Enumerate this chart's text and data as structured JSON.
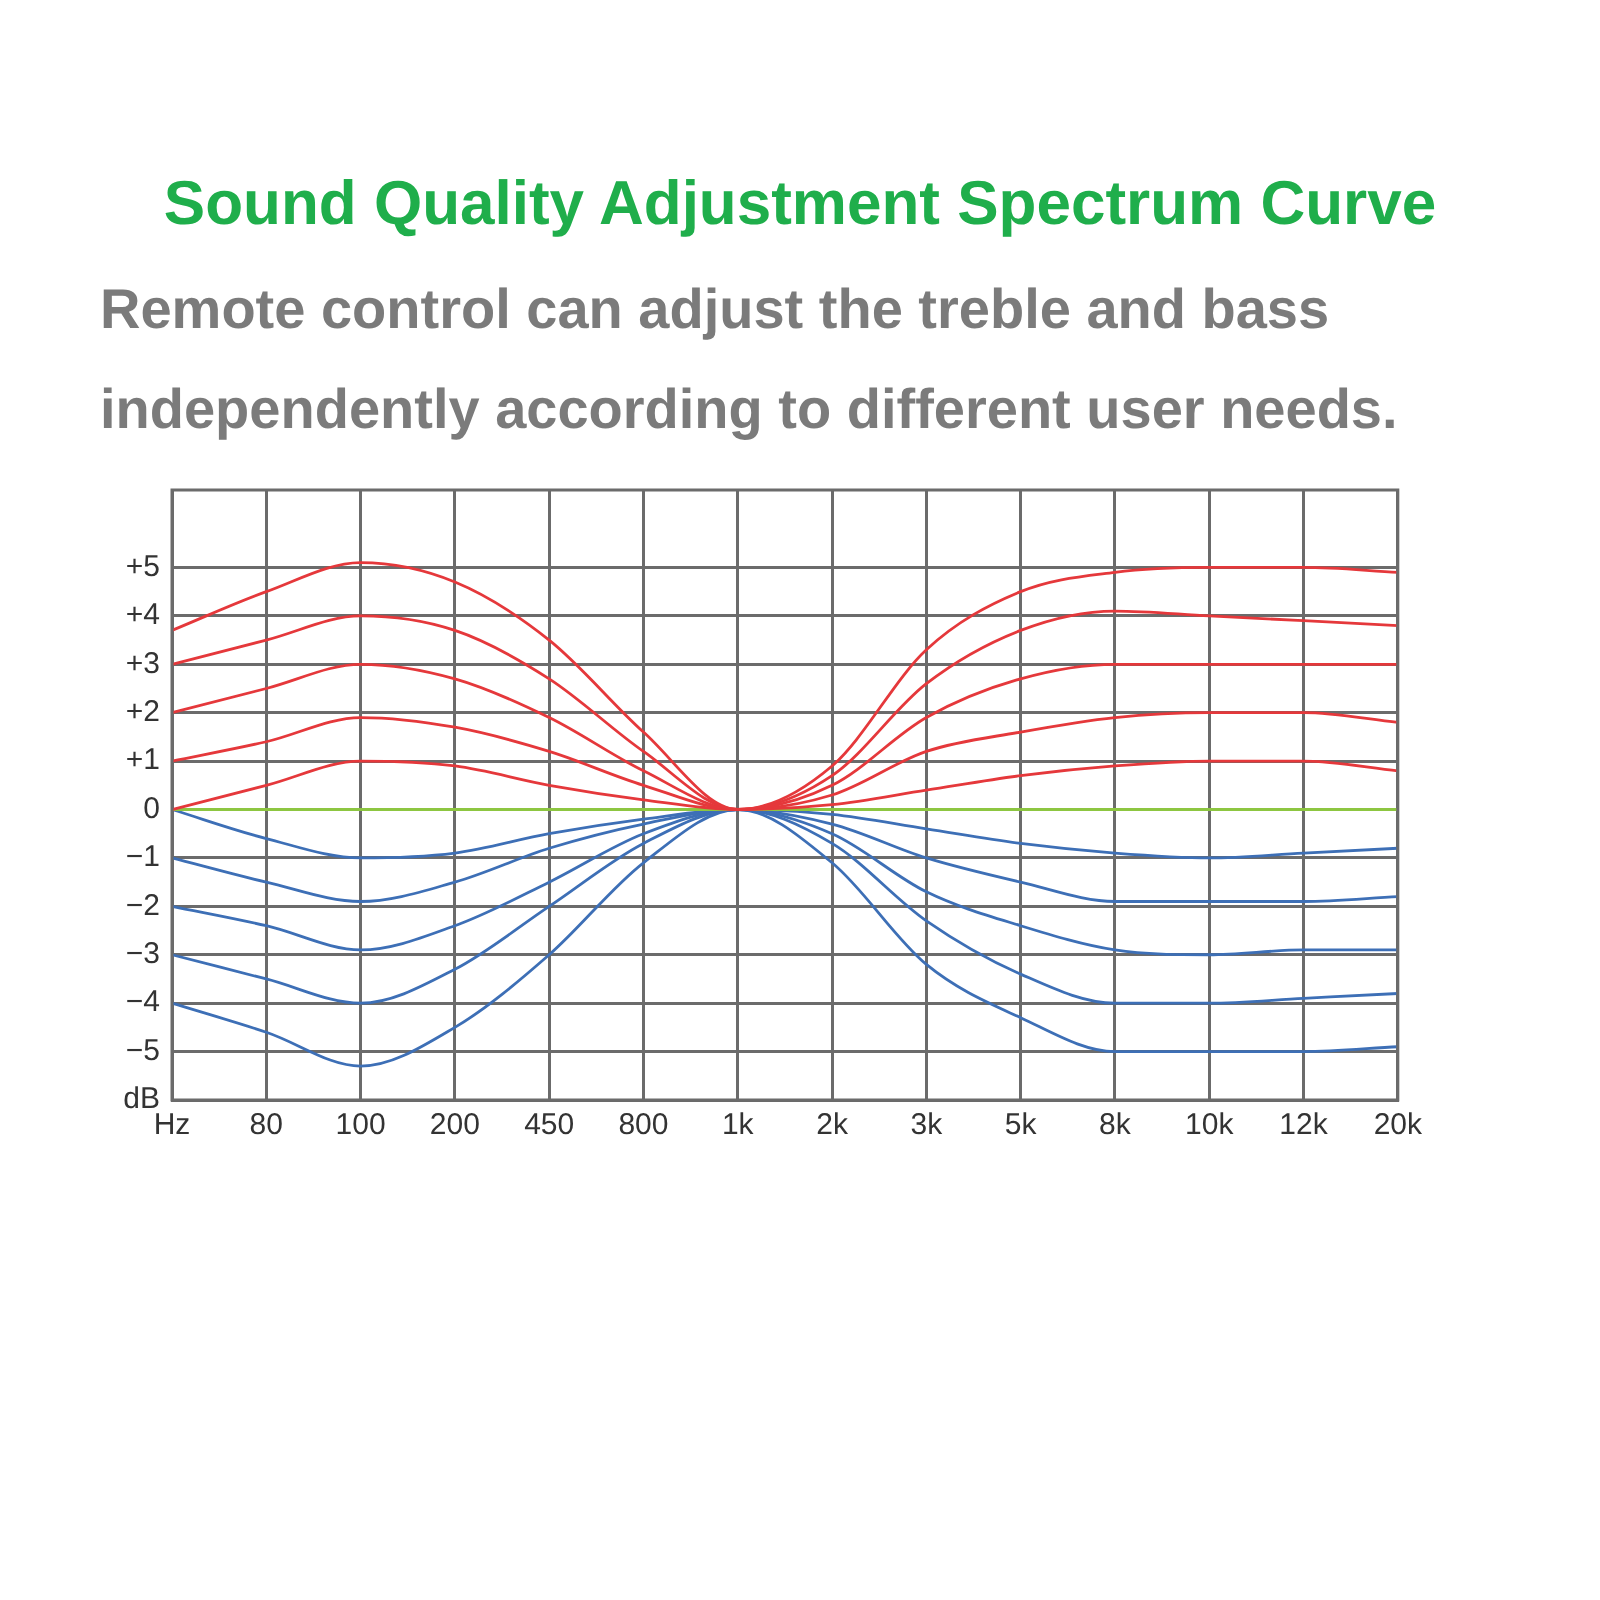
{
  "chart_data": {
    "type": "line",
    "title": "Sound Quality Adjustment Spectrum Curve",
    "subtitle": "Remote control can adjust the treble and bass independently according to different user needs.",
    "categories": [
      "Hz",
      "80",
      "100",
      "200",
      "450",
      "800",
      "1k",
      "2k",
      "3k",
      "5k",
      "8k",
      "10k",
      "12k",
      "20k"
    ],
    "series": [
      {
        "color": "#e5383b",
        "values": [
          3.7,
          4.5,
          5.1,
          4.7,
          3.5,
          1.6,
          0,
          0.9,
          3.3,
          4.5,
          4.9,
          5.0,
          5.0,
          4.9
        ]
      },
      {
        "color": "#e5383b",
        "values": [
          3,
          3.5,
          4,
          3.7,
          2.7,
          1.2,
          0,
          0.7,
          2.6,
          3.7,
          4.1,
          4.0,
          3.9,
          3.8
        ]
      },
      {
        "color": "#e5383b",
        "values": [
          2,
          2.5,
          3,
          2.7,
          1.9,
          0.8,
          0,
          0.5,
          1.9,
          2.7,
          3,
          3,
          3,
          3
        ]
      },
      {
        "color": "#e5383b",
        "values": [
          1,
          1.4,
          1.9,
          1.7,
          1.2,
          0.5,
          0,
          0.3,
          1.2,
          1.6,
          1.9,
          2,
          2,
          1.8
        ]
      },
      {
        "color": "#e5383b",
        "values": [
          0,
          0.5,
          1,
          0.9,
          0.5,
          0.2,
          0,
          0.1,
          0.4,
          0.7,
          0.9,
          1,
          1,
          0.8
        ]
      },
      {
        "color": "#8dc641",
        "values": [
          0,
          0,
          0,
          0,
          0,
          0,
          0,
          0,
          0,
          0,
          0,
          0,
          0,
          0
        ]
      },
      {
        "color": "#3d6fb6",
        "values": [
          0,
          -0.6,
          -1,
          -0.9,
          -0.5,
          -0.2,
          0,
          -0.1,
          -0.4,
          -0.7,
          -0.9,
          -1,
          -0.9,
          -0.8
        ]
      },
      {
        "color": "#3d6fb6",
        "values": [
          -1,
          -1.5,
          -1.9,
          -1.5,
          -0.8,
          -0.3,
          0,
          -0.3,
          -1,
          -1.5,
          -1.9,
          -1.9,
          -1.9,
          -1.8
        ]
      },
      {
        "color": "#3d6fb6",
        "values": [
          -2,
          -2.4,
          -2.9,
          -2.4,
          -1.5,
          -0.5,
          0,
          -0.5,
          -1.7,
          -2.4,
          -2.9,
          -3,
          -2.9,
          -2.9
        ]
      },
      {
        "color": "#3d6fb6",
        "values": [
          -3,
          -3.5,
          -4,
          -3.3,
          -2,
          -0.7,
          0,
          -0.7,
          -2.3,
          -3.4,
          -4,
          -4,
          -3.9,
          -3.8
        ]
      },
      {
        "color": "#3d6fb6",
        "values": [
          -4,
          -4.6,
          -5.3,
          -4.5,
          -3,
          -1.1,
          0,
          -1.1,
          -3.2,
          -4.3,
          -5,
          -5,
          -5,
          -4.9
        ]
      }
    ],
    "ylim": [
      -6,
      6.6
    ],
    "yticks": [
      {
        "value": -6,
        "label": "dB"
      },
      {
        "value": -5,
        "label": "−5"
      },
      {
        "value": -4,
        "label": "−4"
      },
      {
        "value": -3,
        "label": "−3"
      },
      {
        "value": -2,
        "label": "−2"
      },
      {
        "value": -1,
        "label": "−1"
      },
      0,
      {
        "value": 1,
        "label": "+1"
      },
      {
        "value": 2,
        "label": "+2"
      },
      {
        "value": 3,
        "label": "+3"
      },
      {
        "value": 4,
        "label": "+4"
      },
      {
        "value": 5,
        "label": "+5"
      }
    ],
    "grid": true,
    "legend": false,
    "marker": "none"
  }
}
